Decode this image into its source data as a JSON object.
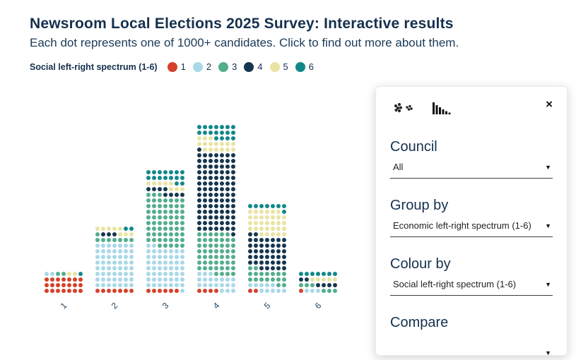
{
  "header": {
    "title": "Newsroom Local Elections 2025 Survey: Interactive results",
    "subtitle": "Each dot represents one of 1000+ candidates. Click to find out more about them."
  },
  "legend": {
    "label": "Social left-right spectrum (1-6)",
    "items": [
      {
        "label": "1",
        "color": "#d6402a"
      },
      {
        "label": "2",
        "color": "#a9d8e8"
      },
      {
        "label": "3",
        "color": "#53ae8c"
      },
      {
        "label": "4",
        "color": "#16364f"
      },
      {
        "label": "5",
        "color": "#e9e4a3"
      },
      {
        "label": "6",
        "color": "#12888a"
      }
    ]
  },
  "chart_data": {
    "type": "dot-column",
    "title": "Newsroom Local Elections 2025 Survey: Interactive results",
    "xlabel": "Economic left-right spectrum (1-6)",
    "categories": [
      "1",
      "2",
      "3",
      "4",
      "5",
      "6"
    ],
    "dots_per_row": 7,
    "legend_position": "top",
    "series": [
      {
        "name": "1",
        "color": "#d6402a",
        "values": [
          21,
          7,
          6,
          4,
          2,
          1
        ]
      },
      {
        "name": "2",
        "color": "#a9d8e8",
        "values": [
          2,
          56,
          52,
          20,
          10,
          3
        ]
      },
      {
        "name": "3",
        "color": "#53ae8c",
        "values": [
          2,
          8,
          64,
          52,
          18,
          6
        ]
      },
      {
        "name": "4",
        "color": "#16364f",
        "values": [
          0,
          3,
          8,
          100,
          42,
          6
        ]
      },
      {
        "name": "5",
        "color": "#e9e4a3",
        "values": [
          2,
          8,
          8,
          16,
          32,
          5
        ]
      },
      {
        "name": "6",
        "color": "#12888a",
        "values": [
          1,
          2,
          16,
          18,
          8,
          7
        ]
      }
    ],
    "column_totals": [
      28,
      84,
      154,
      210,
      112,
      28
    ]
  },
  "panel": {
    "close_label": "×",
    "views": [
      {
        "name": "dot-view"
      },
      {
        "name": "bar-view"
      }
    ],
    "controls": [
      {
        "heading": "Council",
        "value": "All"
      },
      {
        "heading": "Group by",
        "value": "Economic left-right spectrum (1-6)"
      },
      {
        "heading": "Colour by",
        "value": "Social left-right spectrum (1-6)"
      },
      {
        "heading": "Compare",
        "value": ""
      }
    ]
  }
}
